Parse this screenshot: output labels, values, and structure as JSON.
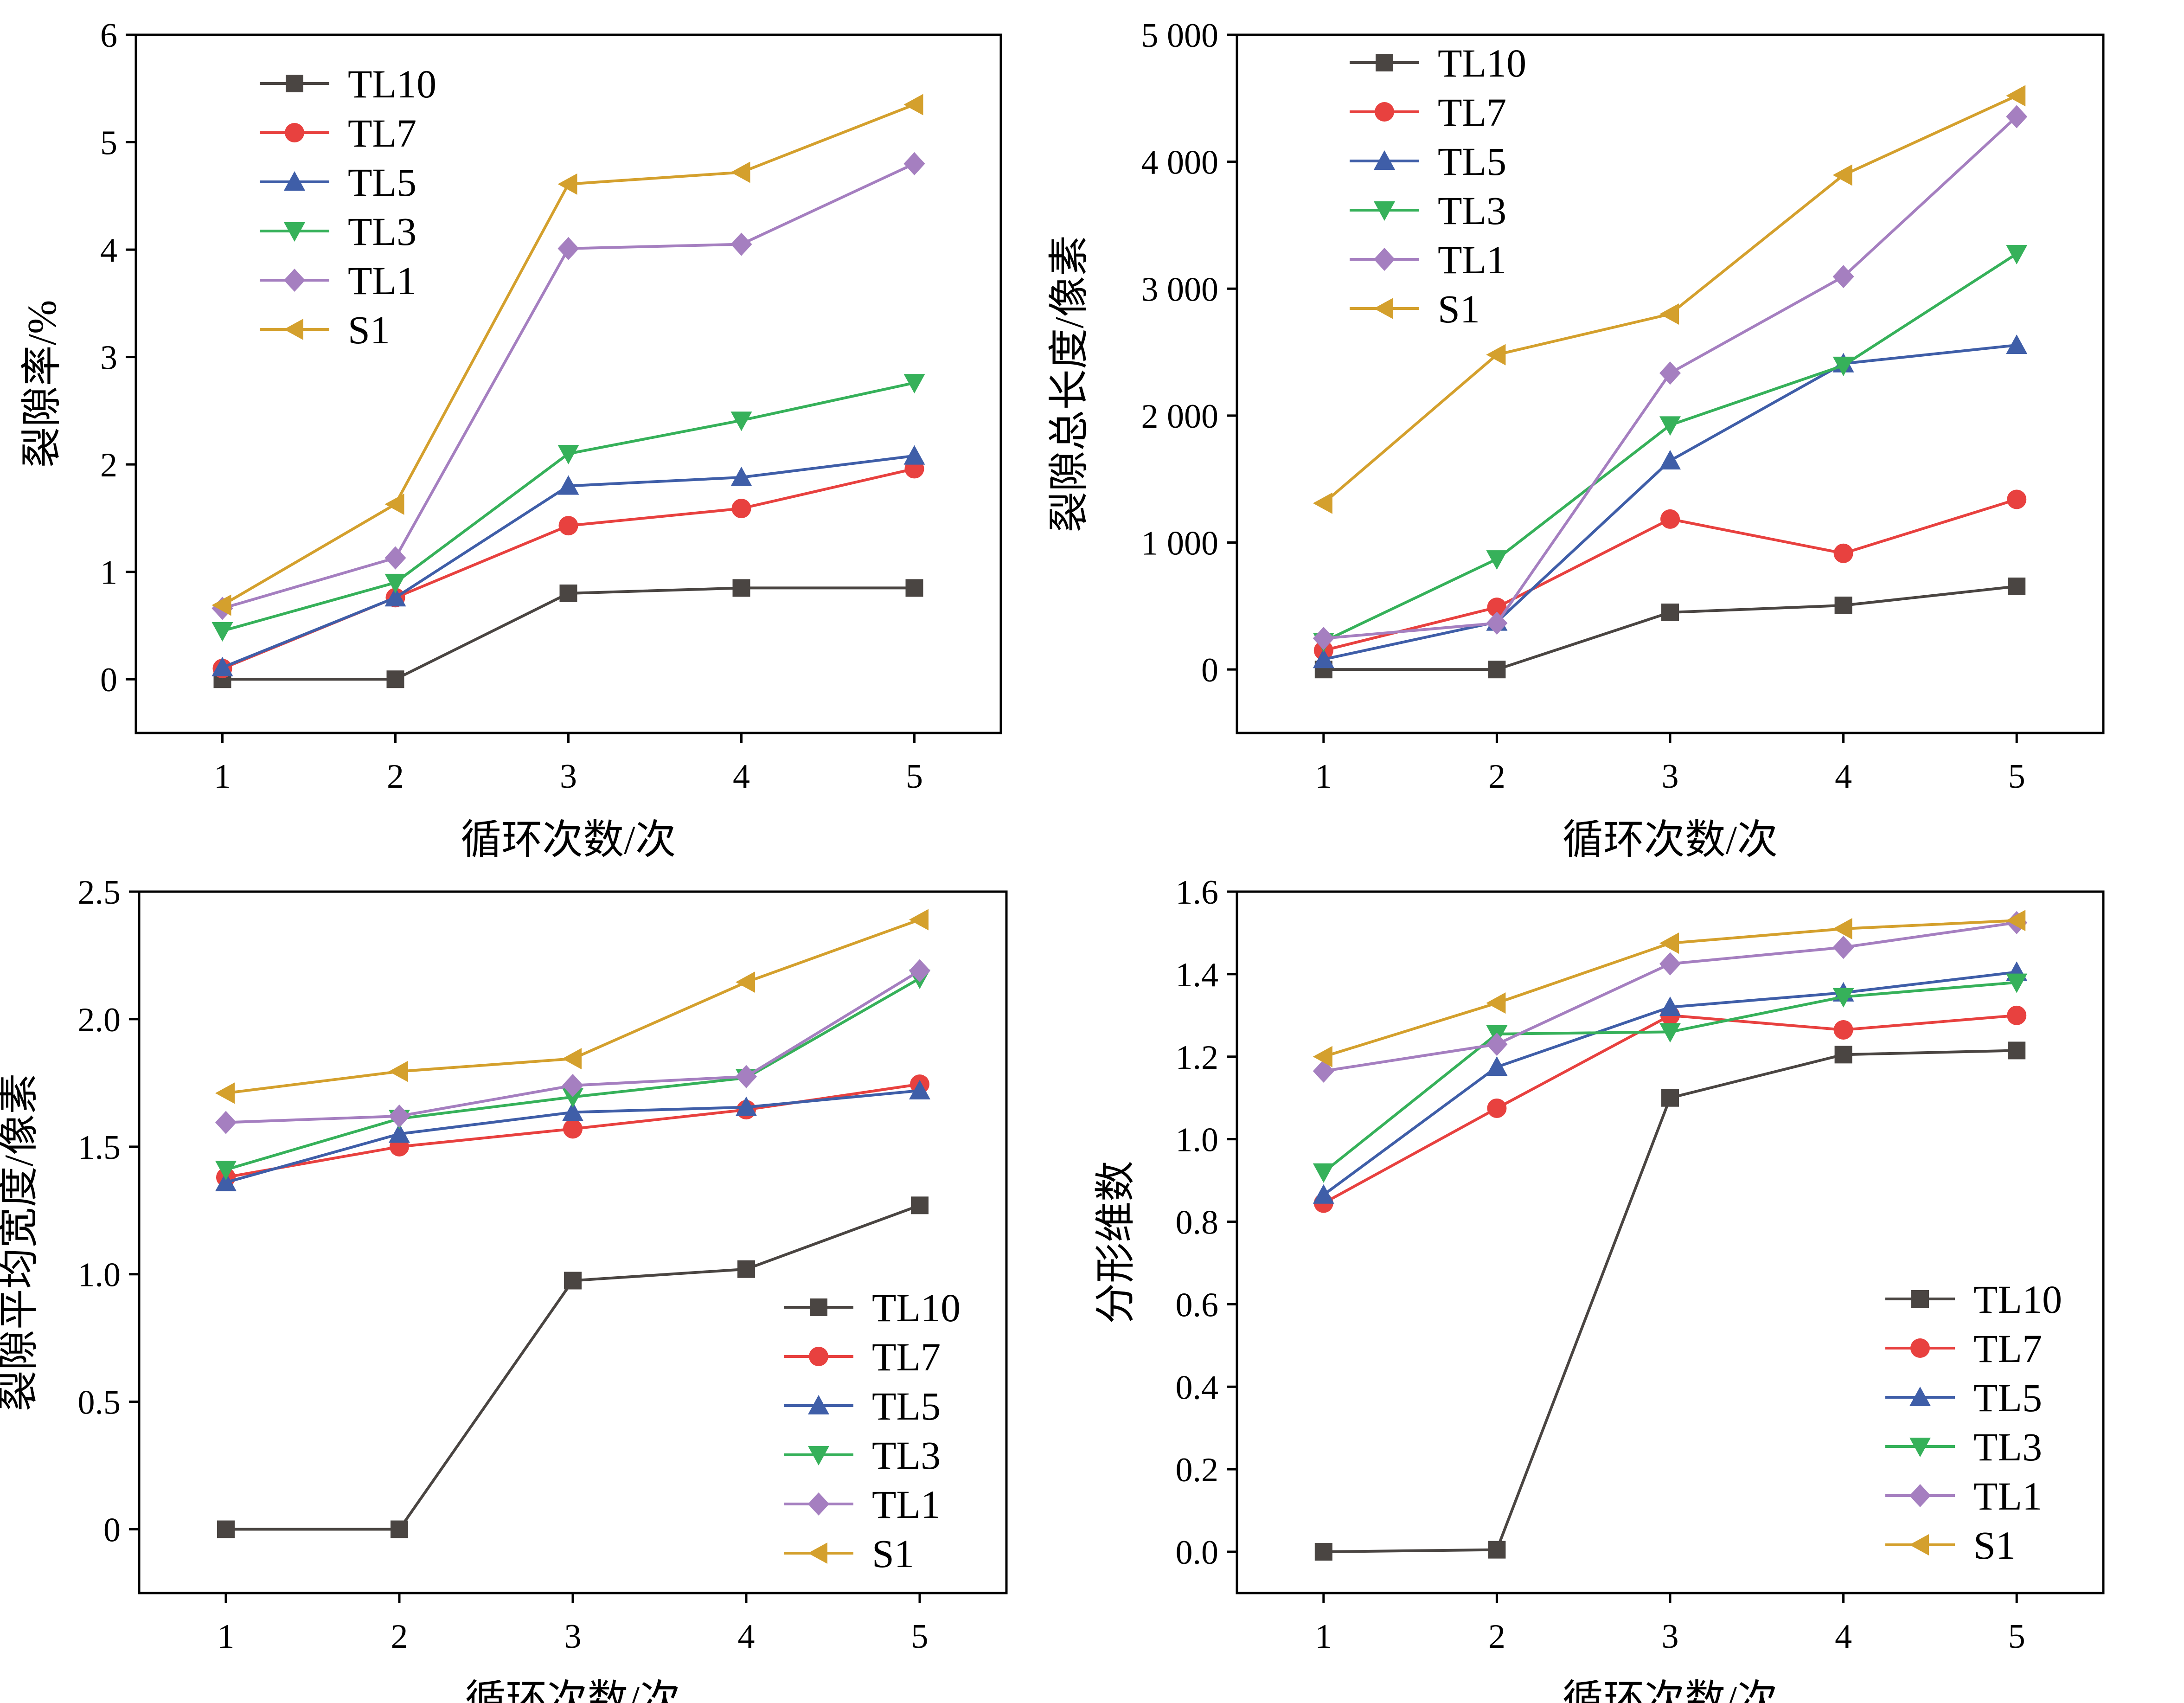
{
  "colors": {
    "TL10": "#4a4542",
    "TL7": "#e8413f",
    "TL5": "#3f5ea8",
    "TL3": "#36b15a",
    "TL1": "#a57fc0",
    "S1": "#d4a02d"
  },
  "chart_data": [
    {
      "type": "line",
      "title": "",
      "xlabel": "循环次数/次",
      "ylabel": "裂隙率/%",
      "categories": [
        1,
        2,
        3,
        4,
        5
      ],
      "xlim": [
        0.5,
        5.5
      ],
      "ylim": [
        -0.5,
        6
      ],
      "yticks": [
        0,
        1,
        2,
        3,
        4,
        5,
        6
      ],
      "ytick_labels": [
        "0",
        "1",
        "2",
        "3",
        "4",
        "5",
        "6"
      ],
      "legend": "top-left",
      "series": [
        {
          "name": "TL10",
          "marker": "square",
          "values": [
            0,
            0,
            0.8,
            0.85,
            0.85
          ]
        },
        {
          "name": "TL7",
          "marker": "circle",
          "values": [
            0.1,
            0.76,
            1.43,
            1.59,
            1.96
          ]
        },
        {
          "name": "TL5",
          "marker": "triangle-up",
          "values": [
            0.11,
            0.76,
            1.8,
            1.88,
            2.08
          ]
        },
        {
          "name": "TL3",
          "marker": "triangle-down",
          "values": [
            0.45,
            0.9,
            2.1,
            2.41,
            2.76
          ]
        },
        {
          "name": "TL1",
          "marker": "diamond",
          "values": [
            0.66,
            1.13,
            4.01,
            4.05,
            4.8
          ]
        },
        {
          "name": "S1",
          "marker": "triangle-left",
          "values": [
            0.69,
            1.63,
            4.61,
            4.72,
            5.35
          ]
        }
      ]
    },
    {
      "type": "line",
      "title": "",
      "xlabel": "循环次数/次",
      "ylabel": "裂隙总长度/像素",
      "categories": [
        1,
        2,
        3,
        4,
        5
      ],
      "xlim": [
        0.5,
        5.5
      ],
      "ylim": [
        -500,
        5000
      ],
      "yticks": [
        0,
        1000,
        2000,
        3000,
        4000,
        5000
      ],
      "ytick_labels": [
        "0",
        "1 000",
        "2 000",
        "3 000",
        "4 000",
        "5 000"
      ],
      "legend": "top-left",
      "series": [
        {
          "name": "TL10",
          "marker": "square",
          "values": [
            0,
            0,
            450,
            505,
            655
          ]
        },
        {
          "name": "TL7",
          "marker": "circle",
          "values": [
            150,
            490,
            1185,
            915,
            1340
          ]
        },
        {
          "name": "TL5",
          "marker": "triangle-up",
          "values": [
            80,
            375,
            1645,
            2410,
            2555
          ]
        },
        {
          "name": "TL3",
          "marker": "triangle-down",
          "values": [
            220,
            870,
            1925,
            2395,
            3275
          ]
        },
        {
          "name": "TL1",
          "marker": "diamond",
          "values": [
            245,
            365,
            2335,
            3095,
            4355
          ]
        },
        {
          "name": "S1",
          "marker": "triangle-left",
          "values": [
            1310,
            2480,
            2800,
            3895,
            4520
          ]
        }
      ]
    },
    {
      "type": "line",
      "title": "",
      "xlabel": "循环次数/次",
      "ylabel": "裂隙平均宽度/像素",
      "categories": [
        1,
        2,
        3,
        4,
        5
      ],
      "xlim": [
        0.5,
        5.5
      ],
      "ylim": [
        -0.25,
        2.5
      ],
      "yticks": [
        0,
        0.5,
        1.0,
        1.5,
        2.0,
        2.5
      ],
      "ytick_labels": [
        "0",
        "0.5",
        "1.0",
        "1.5",
        "2.0",
        "2.5"
      ],
      "legend": "bottom-right",
      "series": [
        {
          "name": "TL10",
          "marker": "square",
          "values": [
            0,
            0,
            0.975,
            1.02,
            1.27
          ]
        },
        {
          "name": "TL7",
          "marker": "circle",
          "values": [
            1.38,
            1.5,
            1.57,
            1.645,
            1.745
          ]
        },
        {
          "name": "TL5",
          "marker": "triangle-up",
          "values": [
            1.36,
            1.55,
            1.635,
            1.655,
            1.72
          ]
        },
        {
          "name": "TL3",
          "marker": "triangle-down",
          "values": [
            1.41,
            1.61,
            1.695,
            1.77,
            2.16
          ]
        },
        {
          "name": "TL1",
          "marker": "diamond",
          "values": [
            1.595,
            1.62,
            1.74,
            1.775,
            2.19
          ]
        },
        {
          "name": "S1",
          "marker": "triangle-left",
          "values": [
            1.71,
            1.795,
            1.845,
            2.145,
            2.39
          ]
        }
      ]
    },
    {
      "type": "line",
      "title": "",
      "xlabel": "循环次数/次",
      "ylabel": "分形维数",
      "categories": [
        1,
        2,
        3,
        4,
        5
      ],
      "xlim": [
        0.5,
        5.5
      ],
      "ylim": [
        -0.1,
        1.6
      ],
      "yticks": [
        0,
        0.2,
        0.4,
        0.6,
        0.8,
        1.0,
        1.2,
        1.4,
        1.6
      ],
      "ytick_labels": [
        "0.0",
        "0.2",
        "0.4",
        "0.6",
        "0.8",
        "1.0",
        "1.2",
        "1.4",
        "1.6"
      ],
      "legend": "bottom-right",
      "series": [
        {
          "name": "TL10",
          "marker": "square",
          "values": [
            0,
            0.005,
            1.1,
            1.205,
            1.215
          ]
        },
        {
          "name": "TL7",
          "marker": "circle",
          "values": [
            0.845,
            1.075,
            1.3,
            1.265,
            1.3
          ]
        },
        {
          "name": "TL5",
          "marker": "triangle-up",
          "values": [
            0.865,
            1.175,
            1.32,
            1.355,
            1.405
          ]
        },
        {
          "name": "TL3",
          "marker": "triangle-down",
          "values": [
            0.92,
            1.255,
            1.26,
            1.345,
            1.38
          ]
        },
        {
          "name": "TL1",
          "marker": "diamond",
          "values": [
            1.165,
            1.23,
            1.425,
            1.465,
            1.525
          ]
        },
        {
          "name": "S1",
          "marker": "triangle-left",
          "values": [
            1.2,
            1.33,
            1.475,
            1.51,
            1.53
          ]
        }
      ]
    }
  ]
}
